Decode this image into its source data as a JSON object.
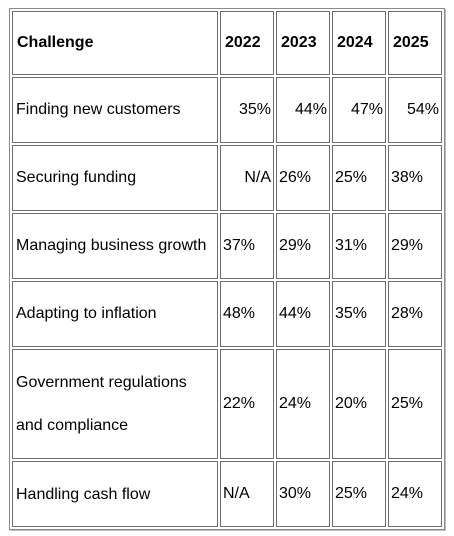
{
  "table": {
    "headers": [
      "Challenge",
      "2022",
      "2023",
      "2024",
      "2025"
    ],
    "rows": [
      {
        "challenge": "Finding new customers",
        "values": [
          "35%",
          "44%",
          "47%",
          "54%"
        ]
      },
      {
        "challenge": "Securing funding",
        "values": [
          "N/A",
          "26%",
          "25%",
          "38%"
        ]
      },
      {
        "challenge": "Managing business growth",
        "values": [
          "37%",
          "29%",
          "31%",
          "29%"
        ]
      },
      {
        "challenge": "Adapting to inflation",
        "values": [
          "48%",
          "44%",
          "35%",
          "28%"
        ]
      },
      {
        "challenge": "Government regulations and compliance",
        "values": [
          "22%",
          "24%",
          "20%",
          "25%"
        ]
      },
      {
        "challenge": "Handling cash flow",
        "values": [
          "N/A",
          "30%",
          "25%",
          "24%"
        ]
      }
    ]
  }
}
